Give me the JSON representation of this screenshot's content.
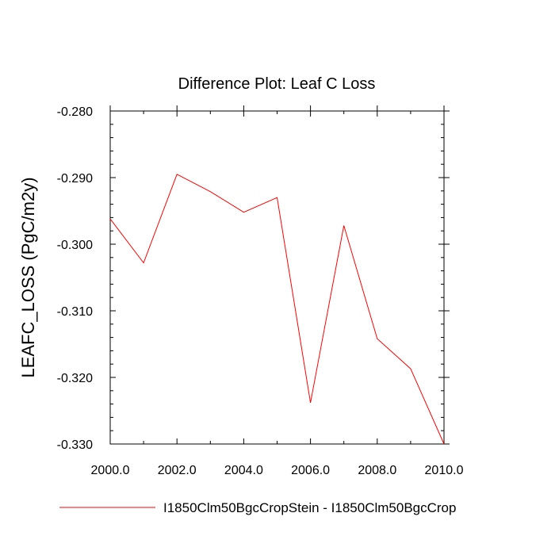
{
  "chart_data": {
    "type": "line",
    "title": "Difference Plot: Leaf C Loss",
    "xlabel": "",
    "ylabel": "LEAFC_LOSS  (PgC/m2y)",
    "xlim": [
      2000.0,
      2010.0
    ],
    "ylim": [
      -0.33,
      -0.28
    ],
    "x_ticks": [
      2000.0,
      2002.0,
      2004.0,
      2006.0,
      2008.0,
      2010.0
    ],
    "x_tick_labels": [
      "2000.0",
      "2002.0",
      "2004.0",
      "2006.0",
      "2008.0",
      "2010.0"
    ],
    "x_minor_ticks": [
      2001.0,
      2003.0,
      2005.0,
      2007.0,
      2009.0
    ],
    "y_ticks": [
      -0.28,
      -0.29,
      -0.3,
      -0.31,
      -0.32,
      -0.33
    ],
    "y_tick_labels": [
      "-0.280",
      "-0.290",
      "-0.300",
      "-0.310",
      "-0.320",
      "-0.330"
    ],
    "y_minor_step": 0.002,
    "grid": false,
    "legend_position": "bottom",
    "series": [
      {
        "name": "I1850Clm50BgcCropStein - I1850Clm50BgcCrop",
        "color": "#ff0000",
        "x": [
          2000,
          2001,
          2002,
          2003,
          2004,
          2005,
          2006,
          2007,
          2008,
          2009,
          2010
        ],
        "y": [
          -0.2962,
          -0.3028,
          -0.2895,
          -0.2921,
          -0.2952,
          -0.293,
          -0.3238,
          -0.2972,
          -0.3142,
          -0.3187,
          -0.33
        ]
      }
    ]
  }
}
